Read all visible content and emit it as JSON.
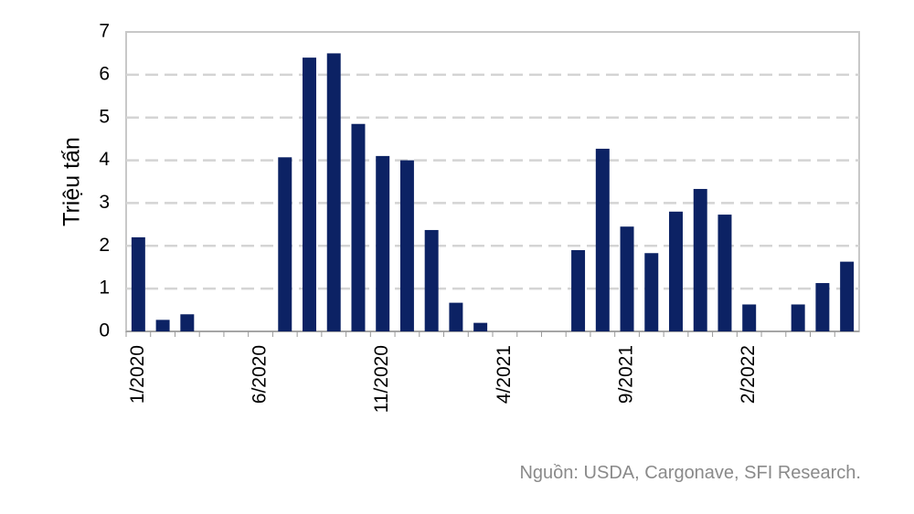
{
  "chart_data": {
    "type": "bar",
    "ylabel": "Triệu tấn",
    "source": "Nguồn: USDA, Cargonave, SFI Research.",
    "categories": [
      "1/2020",
      null,
      null,
      null,
      null,
      "6/2020",
      null,
      null,
      null,
      null,
      "11/2020",
      null,
      null,
      null,
      null,
      "4/2021",
      null,
      null,
      null,
      null,
      "9/2021",
      null,
      null,
      null,
      null,
      "2/2022",
      null,
      null,
      null,
      null
    ],
    "values": [
      2.2,
      0.27,
      0.4,
      0,
      0,
      0,
      4.07,
      6.4,
      6.5,
      4.85,
      4.1,
      4.0,
      2.37,
      0.67,
      0.2,
      0,
      0,
      0,
      1.9,
      4.27,
      2.45,
      1.83,
      2.8,
      3.33,
      2.73,
      0.63,
      0,
      0.63,
      1.13,
      1.63
    ],
    "color": "#0c2264",
    "ylim": [
      0,
      7
    ],
    "yticks": [
      0,
      1,
      2,
      3,
      4,
      5,
      6,
      7
    ],
    "grid": true
  }
}
